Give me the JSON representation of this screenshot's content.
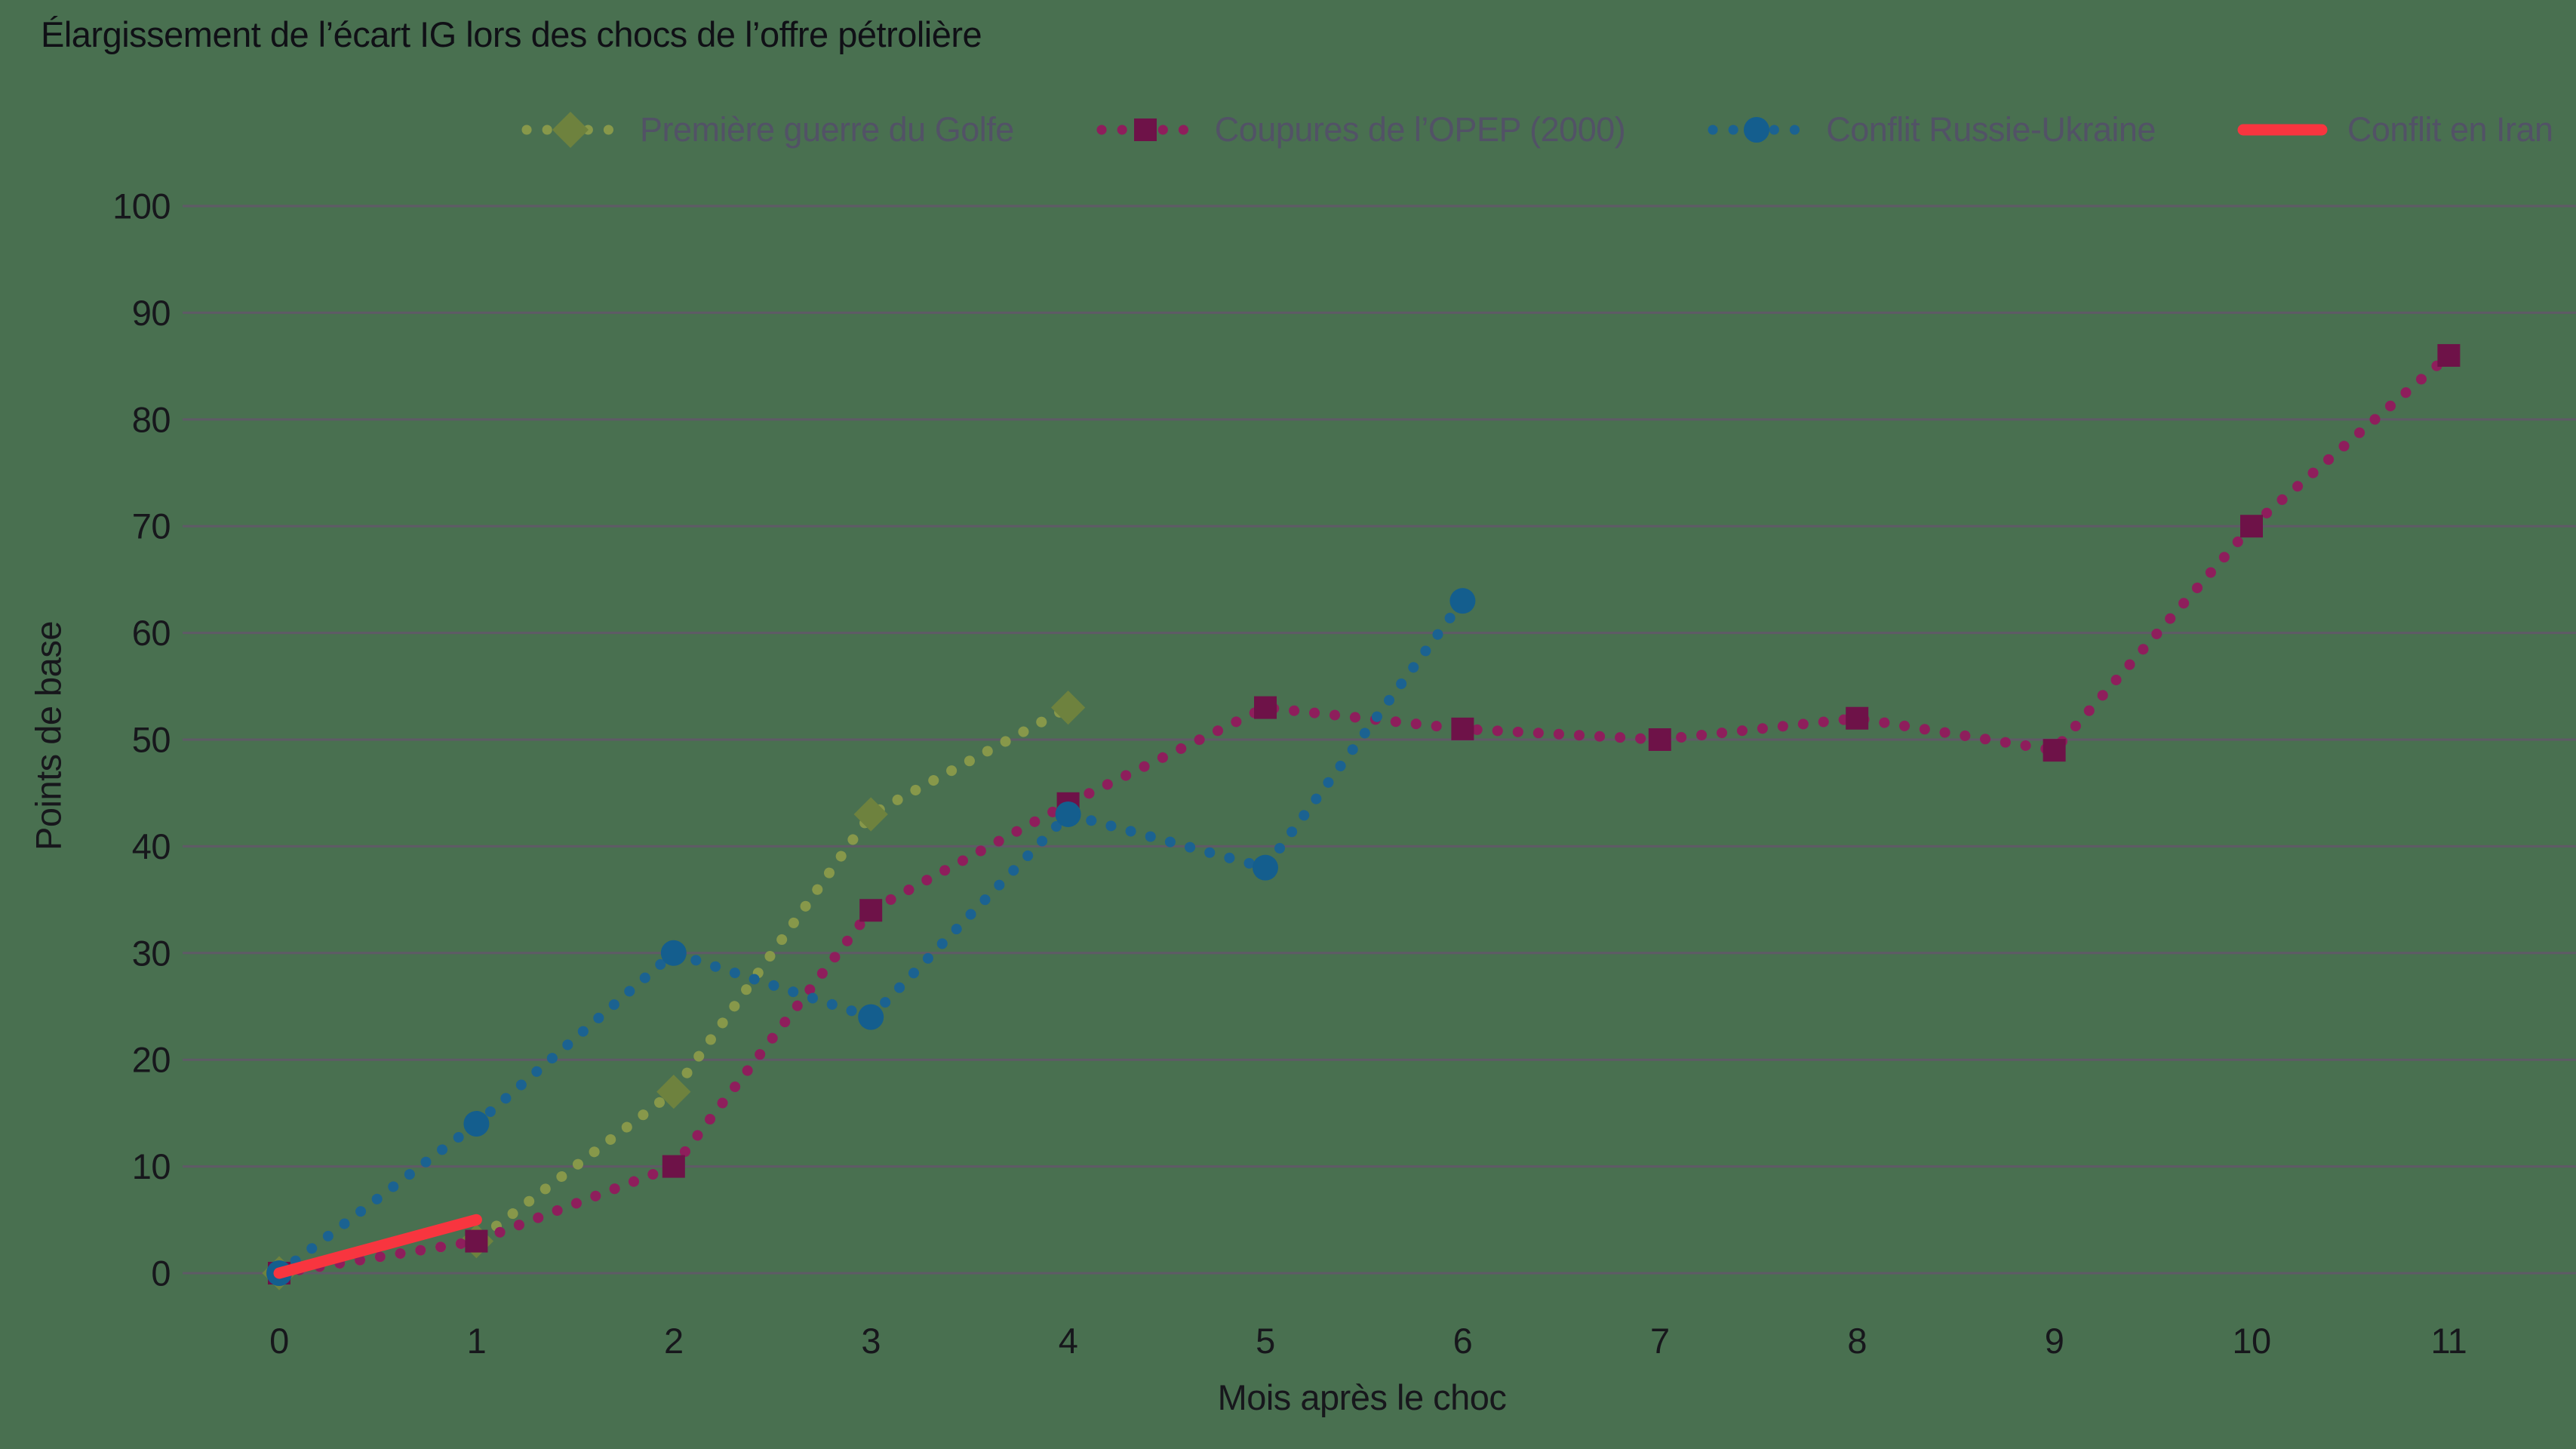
{
  "chart_data": {
    "type": "line",
    "title": "Élargissement de l’écart IG lors des chocs de l’offre pétrolière",
    "xlabel": "Mois après le choc",
    "ylabel": "Points de base",
    "xlim": [
      0,
      11
    ],
    "ylim": [
      0,
      100
    ],
    "x_ticks": [
      0,
      1,
      2,
      3,
      4,
      5,
      6,
      7,
      8,
      9,
      10,
      11
    ],
    "y_ticks": [
      0,
      10,
      20,
      30,
      40,
      50,
      60,
      70,
      80,
      90,
      100
    ],
    "grid": "horizontal",
    "legend_position": "top-center",
    "series": [
      {
        "name": "Première guerre du Golfe",
        "marker": "diamond",
        "line": "dotted",
        "color": "#87984a",
        "marker_color": "#6e823e",
        "x": [
          0,
          1,
          2,
          3,
          4
        ],
        "values": [
          0,
          3,
          17,
          43,
          53
        ]
      },
      {
        "name": "Coupures de l’OPEP (2000)",
        "marker": "square",
        "line": "dotted",
        "color": "#8e1e5c",
        "marker_color": "#6e1248",
        "x": [
          0,
          1,
          2,
          3,
          4,
          5,
          6,
          7,
          8,
          9,
          10,
          11
        ],
        "values": [
          0,
          3,
          10,
          34,
          44,
          53,
          51,
          50,
          52,
          49,
          70,
          86
        ]
      },
      {
        "name": "Conflit Russie-Ukraine",
        "marker": "circle",
        "line": "dotted",
        "color": "#1b6291",
        "marker_color": "#145e8e",
        "x": [
          0,
          1,
          2,
          3,
          4,
          5,
          6
        ],
        "values": [
          0,
          14,
          30,
          24,
          43,
          38,
          63
        ]
      },
      {
        "name": "Conflit en Iran",
        "marker": "none",
        "line": "solid",
        "color": "#f8353f",
        "marker_color": "#f8353f",
        "x": [
          0,
          1
        ],
        "values": [
          0,
          5
        ]
      }
    ]
  },
  "colors": {
    "background": "#497050",
    "gridline": "#5f5a66",
    "axis_text": "#17171c",
    "title_text": "#101016",
    "legend_text": "#525266"
  }
}
